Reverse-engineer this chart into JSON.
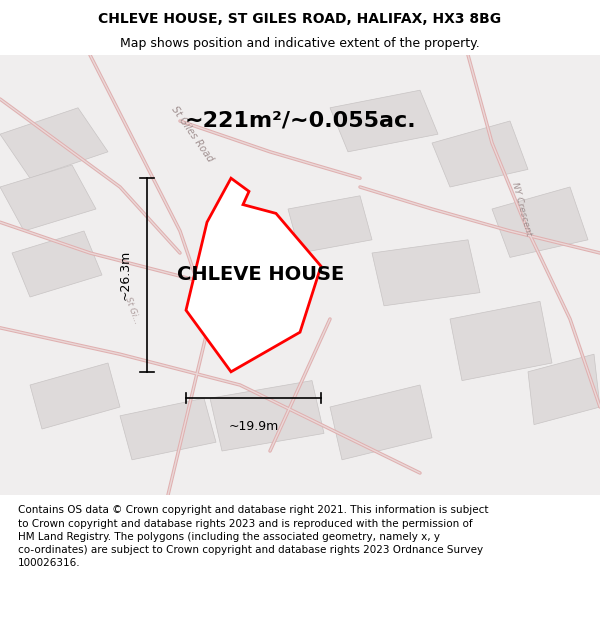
{
  "title_line1": "CHLEVE HOUSE, ST GILES ROAD, HALIFAX, HX3 8BG",
  "title_line2": "Map shows position and indicative extent of the property.",
  "property_label": "CHLEVE HOUSE",
  "area_text": "~221m²/~0.055ac.",
  "dim_vertical": "~26.3m",
  "dim_horizontal": "~19.9m",
  "footer_wrapped": "Contains OS data © Crown copyright and database right 2021. This information is subject\nto Crown copyright and database rights 2023 and is reproduced with the permission of\nHM Land Registry. The polygons (including the associated geometry, namely x, y\nco-ordinates) are subject to Crown copyright and database rights 2023 Ordnance Survey\n100026316.",
  "bg_color": "#f0eeee",
  "title_fontsize": 10,
  "label_fontsize": 14,
  "area_fontsize": 16,
  "footer_fontsize": 7.5
}
